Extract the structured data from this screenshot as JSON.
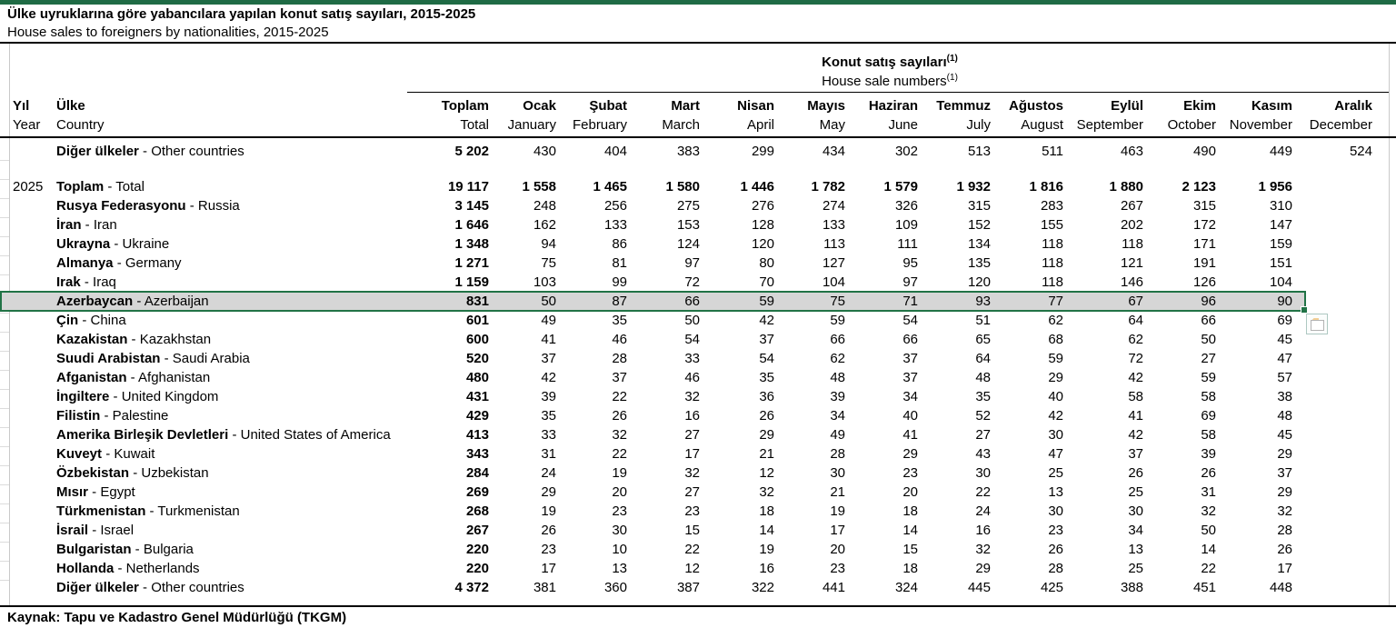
{
  "page": {
    "title_tr": "Ülke uyruklarına göre yabancılara yapılan konut satış sayıları, 2015-2025",
    "title_en": "House sales to foreigners by nationalities, 2015-2025",
    "source": "Kaynak: Tapu ve Kadastro Genel Müdürlüğü (TKGM)"
  },
  "colors": {
    "top_bar_green": "#1F6B45",
    "selection_border_green": "#217346",
    "highlight_fill_gray": "#D6D6D6",
    "gridline_gray": "#C9C9C9",
    "rule_black": "#000000"
  },
  "icons": {
    "paste_options": "clipboard-paste-options-icon"
  },
  "table": {
    "group_header": {
      "tr": "Konut satış sayıları",
      "en": "House sale numbers",
      "footnote": "(1)"
    },
    "row_header": {
      "year_tr": "Yıl",
      "year_en": "Year",
      "country_tr": "Ülke",
      "country_en": "Country"
    },
    "separator": " - ",
    "columns": [
      {
        "tr": "Toplam",
        "en": "Total"
      },
      {
        "tr": "Ocak",
        "en": "January"
      },
      {
        "tr": "Şubat",
        "en": "February"
      },
      {
        "tr": "Mart",
        "en": "March"
      },
      {
        "tr": "Nisan",
        "en": "April"
      },
      {
        "tr": "Mayıs",
        "en": "May"
      },
      {
        "tr": "Haziran",
        "en": "June"
      },
      {
        "tr": "Temmuz",
        "en": "July"
      },
      {
        "tr": "Ağustos",
        "en": "August"
      },
      {
        "tr": "Eylül",
        "en": "September"
      },
      {
        "tr": "Ekim",
        "en": "October"
      },
      {
        "tr": "Kasım",
        "en": "November"
      },
      {
        "tr": "Aralık",
        "en": "December"
      }
    ],
    "prev_rows": [
      {
        "tr": "Diğer ülkeler",
        "en": "Other countries",
        "values": [
          "5 202",
          "430",
          "404",
          "383",
          "299",
          "434",
          "302",
          "513",
          "511",
          "463",
          "490",
          "449",
          "524"
        ]
      }
    ],
    "year": "2025",
    "rows": [
      {
        "year": "2025",
        "tr": "Toplam",
        "en": "Total",
        "bold_row": true,
        "values": [
          "19 117",
          "1 558",
          "1 465",
          "1 580",
          "1 446",
          "1 782",
          "1 579",
          "1 932",
          "1 816",
          "1 880",
          "2 123",
          "1 956",
          ""
        ]
      },
      {
        "tr": "Rusya Federasyonu",
        "en": "Russia",
        "values": [
          "3 145",
          "248",
          "256",
          "275",
          "276",
          "274",
          "326",
          "315",
          "283",
          "267",
          "315",
          "310",
          ""
        ]
      },
      {
        "tr": "İran",
        "en": "Iran",
        "values": [
          "1 646",
          "162",
          "133",
          "153",
          "128",
          "133",
          "109",
          "152",
          "155",
          "202",
          "172",
          "147",
          ""
        ]
      },
      {
        "tr": "Ukrayna",
        "en": "Ukraine",
        "values": [
          "1 348",
          "94",
          "86",
          "124",
          "120",
          "113",
          "111",
          "134",
          "118",
          "118",
          "171",
          "159",
          ""
        ]
      },
      {
        "tr": "Almanya",
        "en": "Germany",
        "values": [
          "1 271",
          "75",
          "81",
          "97",
          "80",
          "127",
          "95",
          "135",
          "118",
          "121",
          "191",
          "151",
          ""
        ]
      },
      {
        "tr": "Irak",
        "en": "Iraq",
        "values": [
          "1 159",
          "103",
          "99",
          "72",
          "70",
          "104",
          "97",
          "120",
          "118",
          "146",
          "126",
          "104",
          ""
        ]
      },
      {
        "tr": "Azerbaycan",
        "en": "Azerbaijan",
        "highlighted": true,
        "values": [
          "831",
          "50",
          "87",
          "66",
          "59",
          "75",
          "71",
          "93",
          "77",
          "67",
          "96",
          "90",
          ""
        ]
      },
      {
        "tr": "Çin",
        "en": "China",
        "values": [
          "601",
          "49",
          "35",
          "50",
          "42",
          "59",
          "54",
          "51",
          "62",
          "64",
          "66",
          "69",
          ""
        ]
      },
      {
        "tr": "Kazakistan",
        "en": "Kazakhstan",
        "values": [
          "600",
          "41",
          "46",
          "54",
          "37",
          "66",
          "66",
          "65",
          "68",
          "62",
          "50",
          "45",
          ""
        ]
      },
      {
        "tr": "Suudi Arabistan",
        "en": "Saudi Arabia",
        "values": [
          "520",
          "37",
          "28",
          "33",
          "54",
          "62",
          "37",
          "64",
          "59",
          "72",
          "27",
          "47",
          ""
        ]
      },
      {
        "tr": "Afganistan",
        "en": "Afghanistan",
        "values": [
          "480",
          "42",
          "37",
          "46",
          "35",
          "48",
          "37",
          "48",
          "29",
          "42",
          "59",
          "57",
          ""
        ]
      },
      {
        "tr": "İngiltere",
        "en": "United Kingdom",
        "values": [
          "431",
          "39",
          "22",
          "32",
          "36",
          "39",
          "34",
          "35",
          "40",
          "58",
          "58",
          "38",
          ""
        ]
      },
      {
        "tr": "Filistin",
        "en": "Palestine",
        "values": [
          "429",
          "35",
          "26",
          "16",
          "26",
          "34",
          "40",
          "52",
          "42",
          "41",
          "69",
          "48",
          ""
        ]
      },
      {
        "tr": "Amerika Birleşik Devletleri",
        "en": "United States of America",
        "values": [
          "413",
          "33",
          "32",
          "27",
          "29",
          "49",
          "41",
          "27",
          "30",
          "42",
          "58",
          "45",
          ""
        ]
      },
      {
        "tr": "Kuveyt",
        "en": "Kuwait",
        "values": [
          "343",
          "31",
          "22",
          "17",
          "21",
          "28",
          "29",
          "43",
          "47",
          "37",
          "39",
          "29",
          ""
        ]
      },
      {
        "tr": "Özbekistan",
        "en": "Uzbekistan",
        "values": [
          "284",
          "24",
          "19",
          "32",
          "12",
          "30",
          "23",
          "30",
          "25",
          "26",
          "26",
          "37",
          ""
        ]
      },
      {
        "tr": "Mısır",
        "en": "Egypt",
        "values": [
          "269",
          "29",
          "20",
          "27",
          "32",
          "21",
          "20",
          "22",
          "13",
          "25",
          "31",
          "29",
          ""
        ]
      },
      {
        "tr": "Türkmenistan",
        "en": "Turkmenistan",
        "values": [
          "268",
          "19",
          "23",
          "23",
          "18",
          "19",
          "18",
          "24",
          "30",
          "30",
          "32",
          "32",
          ""
        ]
      },
      {
        "tr": "İsrail",
        "en": "Israel",
        "values": [
          "267",
          "26",
          "30",
          "15",
          "14",
          "17",
          "14",
          "16",
          "23",
          "34",
          "50",
          "28",
          ""
        ]
      },
      {
        "tr": "Bulgaristan",
        "en": "Bulgaria",
        "values": [
          "220",
          "23",
          "10",
          "22",
          "19",
          "20",
          "15",
          "32",
          "26",
          "13",
          "14",
          "26",
          ""
        ]
      },
      {
        "tr": "Hollanda",
        "en": "Netherlands",
        "values": [
          "220",
          "17",
          "13",
          "12",
          "16",
          "23",
          "18",
          "29",
          "28",
          "25",
          "22",
          "17",
          ""
        ]
      },
      {
        "tr": "Diğer ülkeler",
        "en": "Other countries",
        "values": [
          "4 372",
          "381",
          "360",
          "387",
          "322",
          "441",
          "324",
          "445",
          "425",
          "388",
          "451",
          "448",
          ""
        ]
      }
    ]
  }
}
